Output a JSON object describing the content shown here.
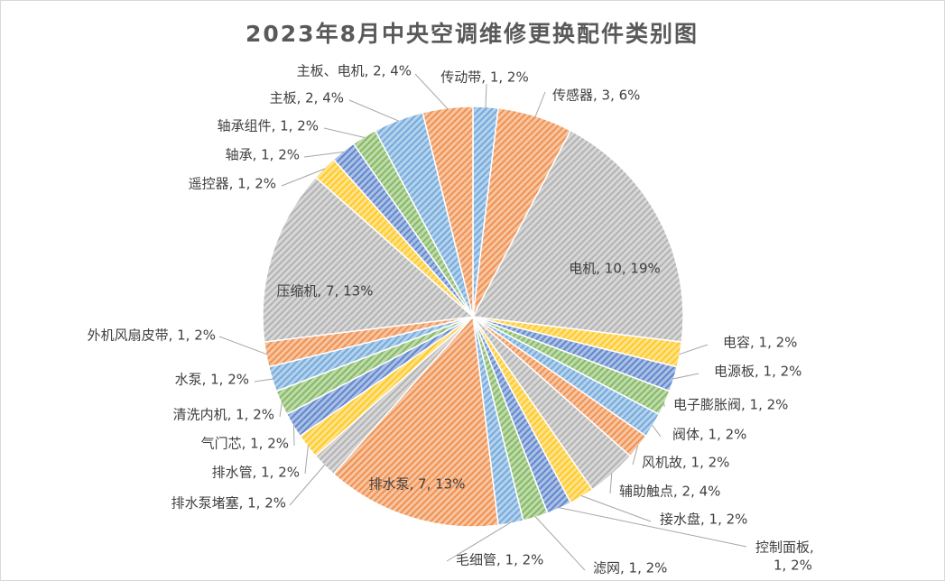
{
  "colors": [
    "#5b9bd5",
    "#ed7d31",
    "#a5a5a5",
    "#ffc000",
    "#4472c4",
    "#70ad47"
  ],
  "chart_data": {
    "type": "pie",
    "title": "2023年8月中央空调维修更换配件类别图",
    "legend": "none",
    "label_format": "category, value, percent",
    "slices": [
      {
        "label": "传动带",
        "value": 1,
        "percent": "2%",
        "color": "#5b9bd5",
        "display": "传动带, 1, 2%"
      },
      {
        "label": "传感器",
        "value": 3,
        "percent": "6%",
        "color": "#ed7d31",
        "display": "传感器, 3, 6%"
      },
      {
        "label": "电机",
        "value": 10,
        "percent": "19%",
        "color": "#a5a5a5",
        "display": "电机, 10, 19%"
      },
      {
        "label": "电容",
        "value": 1,
        "percent": "2%",
        "color": "#ffc000",
        "display": "电容, 1, 2%"
      },
      {
        "label": "电源板",
        "value": 1,
        "percent": "2%",
        "color": "#4472c4",
        "display": "电源板, 1, 2%"
      },
      {
        "label": "电子膨胀阀",
        "value": 1,
        "percent": "2%",
        "color": "#70ad47",
        "display": "电子膨胀阀, 1, 2%"
      },
      {
        "label": "阀体",
        "value": 1,
        "percent": "2%",
        "color": "#5b9bd5",
        "display": "阀体, 1, 2%"
      },
      {
        "label": "风机故",
        "value": 1,
        "percent": "2%",
        "color": "#ed7d31",
        "display": "风机故, 1, 2%"
      },
      {
        "label": "辅助触点",
        "value": 2,
        "percent": "4%",
        "color": "#a5a5a5",
        "display": "辅助触点, 2, 4%"
      },
      {
        "label": "接水盘",
        "value": 1,
        "percent": "2%",
        "color": "#ffc000",
        "display": "接水盘, 1, 2%"
      },
      {
        "label": "控制面板",
        "value": 1,
        "percent": "2%",
        "color": "#4472c4",
        "display": "控制面板,",
        "display2": "1, 2%"
      },
      {
        "label": "滤网",
        "value": 1,
        "percent": "2%",
        "color": "#70ad47",
        "display": "滤网, 1, 2%"
      },
      {
        "label": "毛细管",
        "value": 1,
        "percent": "2%",
        "color": "#5b9bd5",
        "display": "毛细管, 1, 2%"
      },
      {
        "label": "排水泵",
        "value": 7,
        "percent": "13%",
        "color": "#ed7d31",
        "display": "排水泵, 7, 13%"
      },
      {
        "label": "排水泵堵塞",
        "value": 1,
        "percent": "2%",
        "color": "#a5a5a5",
        "display": "排水泵堵塞, 1, 2%"
      },
      {
        "label": "排水管",
        "value": 1,
        "percent": "2%",
        "color": "#ffc000",
        "display": "排水管, 1, 2%"
      },
      {
        "label": "气门芯",
        "value": 1,
        "percent": "2%",
        "color": "#4472c4",
        "display": "气门芯, 1, 2%"
      },
      {
        "label": "清洗内机",
        "value": 1,
        "percent": "2%",
        "color": "#70ad47",
        "display": "清洗内机, 1, 2%"
      },
      {
        "label": "水泵",
        "value": 1,
        "percent": "2%",
        "color": "#5b9bd5",
        "display": "水泵, 1, 2%"
      },
      {
        "label": "外机风扇皮带",
        "value": 1,
        "percent": "2%",
        "color": "#ed7d31",
        "display": "外机风扇皮带, 1, 2%"
      },
      {
        "label": "压缩机",
        "value": 7,
        "percent": "13%",
        "color": "#a5a5a5",
        "display": "压缩机, 7, 13%"
      },
      {
        "label": "遥控器",
        "value": 1,
        "percent": "2%",
        "color": "#ffc000",
        "display": "遥控器, 1, 2%"
      },
      {
        "label": "轴承",
        "value": 1,
        "percent": "2%",
        "color": "#4472c4",
        "display": "轴承, 1, 2%"
      },
      {
        "label": "轴承组件",
        "value": 1,
        "percent": "2%",
        "color": "#70ad47",
        "display": "轴承组件, 1, 2%"
      },
      {
        "label": "主板",
        "value": 2,
        "percent": "4%",
        "color": "#5b9bd5",
        "display": "主板, 2, 4%"
      },
      {
        "label": "主板、电机",
        "value": 2,
        "percent": "4%",
        "color": "#ed7d31",
        "display": "主板、电机, 2, 4%"
      }
    ]
  }
}
